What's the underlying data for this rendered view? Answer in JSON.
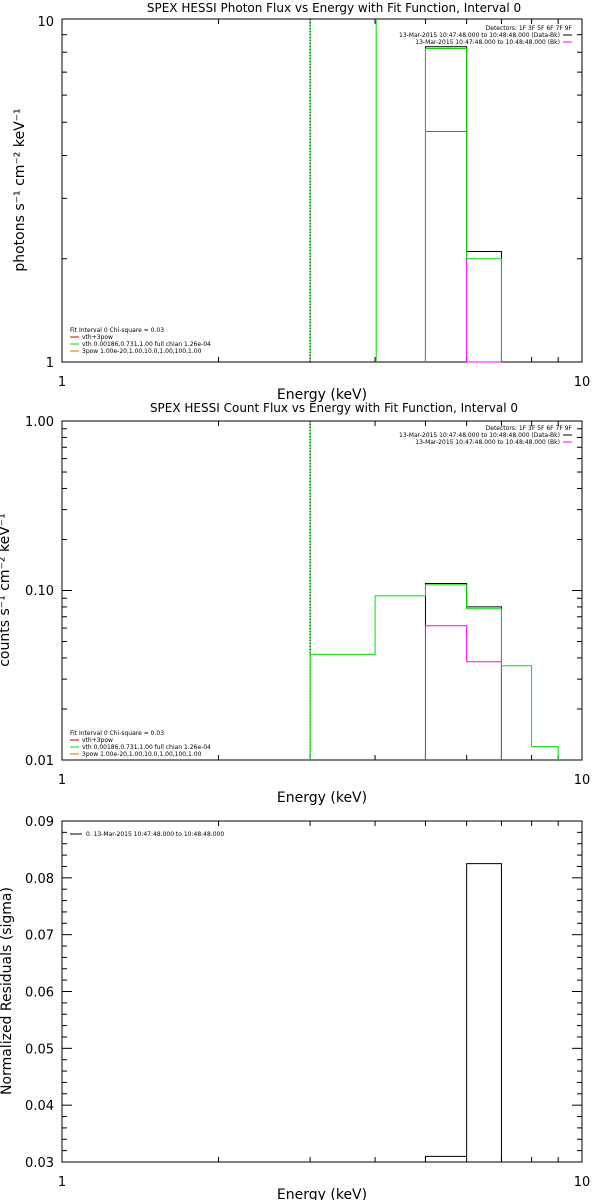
{
  "colors": {
    "data": "#000000",
    "background": "#ff00ff",
    "thermal": "#00dd00",
    "nonthermal": "#e07000"
  },
  "legend_detectors": "Detectors: 1F 3F 5F 6F 7F 9F",
  "legend_data": "13-Mar-2015 10:47:48.000 to 10:48:48.000 (Data-Bk)",
  "legend_bkg": "13-Mar-2015 10:47:48.000 to 10:48:48.000 (Bk)",
  "fit_info": "Fit Interval 0   Chi-square = 0.03",
  "fit_total": "vth+3pow",
  "fit_vth": "vth 0.00186,0.731,1.00  full chian 1.26e-04",
  "fit_3pow": "3pow 1.00e-20,1.00,10.0,1.00,100,1.00",
  "residual_legend": "0. 13-Mar-2015 10:47:48.000 to 10:48:48.000",
  "chart_data": [
    {
      "type": "line",
      "title": "SPEX HESSI Photon Flux vs Energy with Fit Function, Interval 0",
      "xlabel": "Energy (keV)",
      "ylabel": "photons s⁻¹ cm⁻² keV⁻¹",
      "xlim": [
        1,
        10
      ],
      "ylim": [
        1,
        10
      ],
      "xscale": "log",
      "yscale": "log",
      "xticks": [
        "1",
        "10"
      ],
      "yticks": [
        "1",
        "10"
      ],
      "vlines": [
        3,
        4.02
      ],
      "series": [
        {
          "name": "13-Mar-2015 10:47:48.000 to 10:48:48.000 (Data-Bk)",
          "color": "#000000",
          "edges": [
            5,
            6,
            7
          ],
          "values": [
            8.3,
            2.1
          ],
          "floor": 1
        },
        {
          "name": "13-Mar-2015 10:47:48.000 to 10:48:48.000 (Bk)",
          "color": "#ff00ff",
          "edges": [
            5,
            6,
            7
          ],
          "values": [
            4.7,
            1.0
          ],
          "floor": 1
        },
        {
          "name": "vth 0.00186,0.731,1.00  full chian 1.26e-04",
          "color": "#00dd00",
          "edges": [
            5,
            6,
            7
          ],
          "values": [
            8.2,
            2.0
          ],
          "floor": 1
        }
      ]
    },
    {
      "type": "line",
      "title": "SPEX HESSI Count Flux vs Energy with Fit Function, Interval 0",
      "xlabel": "Energy (keV)",
      "ylabel": "counts s⁻¹ cm⁻² keV⁻¹",
      "xlim": [
        1,
        10
      ],
      "ylim": [
        0.01,
        1
      ],
      "xscale": "log",
      "yscale": "log",
      "xticks": [
        "1",
        "10"
      ],
      "yticks": [
        "0.01",
        "0.10",
        "1.00"
      ],
      "vlines": [
        3
      ],
      "series": [
        {
          "name": "13-Mar-2015 10:47:48.000 to 10:48:48.000 (Data-Bk)",
          "color": "#000000",
          "edges": [
            5,
            6,
            7
          ],
          "values": [
            0.11,
            0.08
          ],
          "floor": 0.01
        },
        {
          "name": "13-Mar-2015 10:47:48.000 to 10:48:48.000 (Bk)",
          "color": "#ff00ff",
          "edges": [
            5,
            6,
            7
          ],
          "values": [
            0.062,
            0.038
          ],
          "floor": 0.01
        },
        {
          "name": "vth 0.00186,0.731,1.00  full chian 1.26e-04",
          "color": "#00dd00",
          "edges": [
            3,
            4,
            5,
            6,
            7,
            8,
            9
          ],
          "values": [
            0.042,
            0.093,
            0.108,
            0.078,
            0.036,
            0.012
          ],
          "floor": 0.01
        }
      ]
    },
    {
      "type": "line",
      "title": "",
      "xlabel": "Energy (keV)",
      "ylabel": "Normalized Residuals (sigma)",
      "xlim": [
        1,
        10
      ],
      "ylim": [
        0.03,
        0.09
      ],
      "xscale": "log",
      "yscale": "linear",
      "xticks": [
        "1",
        "10"
      ],
      "yticks": [
        "0.03",
        "0.04",
        "0.05",
        "0.06",
        "0.07",
        "0.08",
        "0.09"
      ],
      "vlines": [],
      "series": [
        {
          "name": "0. 13-Mar-2015 10:47:48.000 to 10:48:48.000",
          "color": "#000000",
          "edges": [
            5,
            6,
            7
          ],
          "values": [
            0.031,
            0.0825
          ],
          "floor": 0.03
        }
      ]
    }
  ]
}
